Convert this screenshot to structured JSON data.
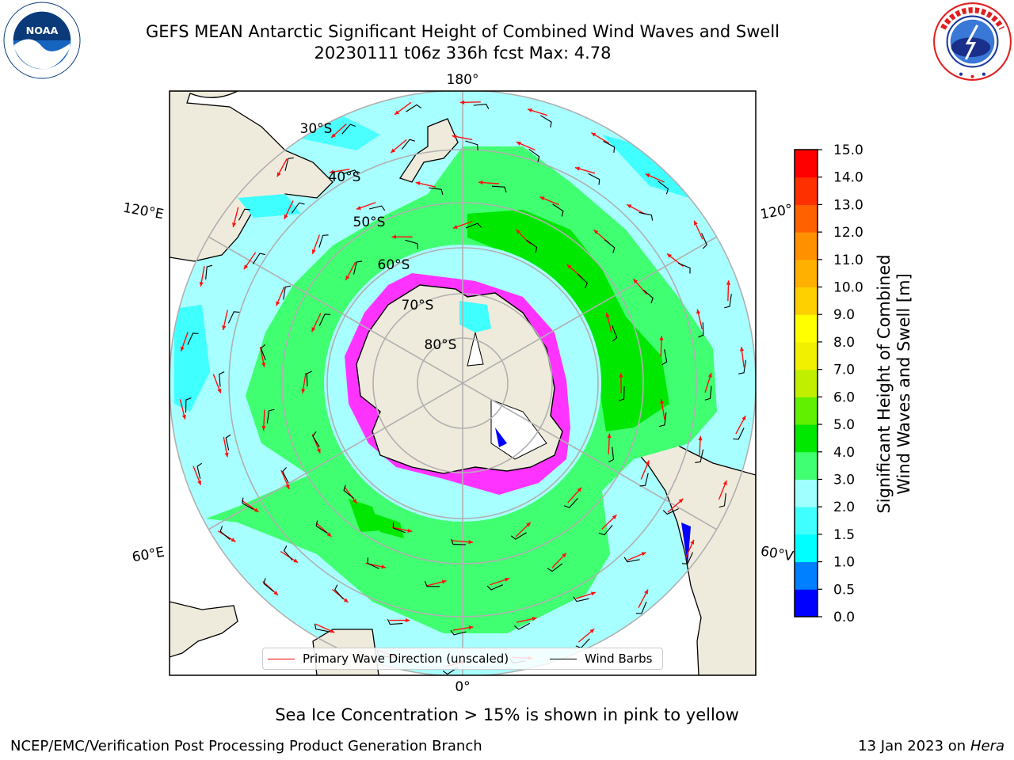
{
  "header": {
    "title_line1": "GEFS MEAN Antarctic Significant Height of Combined Wind Waves and Swell",
    "title_line2": "20230111 t06z 336h fcst   Max: 4.78"
  },
  "logos": {
    "left": "noaa-logo",
    "right": "nws-logo"
  },
  "map": {
    "projection": "south polar stereographic",
    "longitude_labels": [
      "180°",
      "120°E",
      "120°",
      "60°E",
      "60°V",
      "0°"
    ],
    "latitude_labels": [
      "30°S",
      "40°S",
      "50°S",
      "60°S",
      "70°S",
      "80°S"
    ],
    "colors": {
      "land": "#efebdc",
      "ice": "#ff33ff",
      "coast": "#000000"
    }
  },
  "colorbar": {
    "ticks": [
      "0.0",
      "0.5",
      "1.0",
      "1.5",
      "2.0",
      "3.0",
      "4.0",
      "5.0",
      "6.0",
      "7.0",
      "8.0",
      "9.0",
      "10.0",
      "11.0",
      "12.0",
      "13.0",
      "14.0",
      "15.0"
    ],
    "colors": [
      "#0000ff",
      "#0080ff",
      "#00ffff",
      "#40ffff",
      "#a0ffff",
      "#40ff70",
      "#00e800",
      "#60f000",
      "#c0f000",
      "#f0f000",
      "#ffff00",
      "#ffd000",
      "#ffb000",
      "#ff9000",
      "#ff6000",
      "#ff3000",
      "#ff0000"
    ],
    "label": "Significant Height of Combined\nWind Waves and Swell [m]"
  },
  "legend": {
    "items": [
      {
        "label": "Primary Wave Direction (unscaled)",
        "color": "#ff0000"
      },
      {
        "label": "Wind Barbs",
        "color": "#000000"
      }
    ]
  },
  "notes": {
    "ice": "Sea Ice Concentration > 15% is shown in pink to yellow"
  },
  "footer": {
    "left": "NCEP/EMC/Verification Post Processing Product Generation Branch",
    "right_date": "13 Jan 2023 on ",
    "right_host": "Hera"
  }
}
